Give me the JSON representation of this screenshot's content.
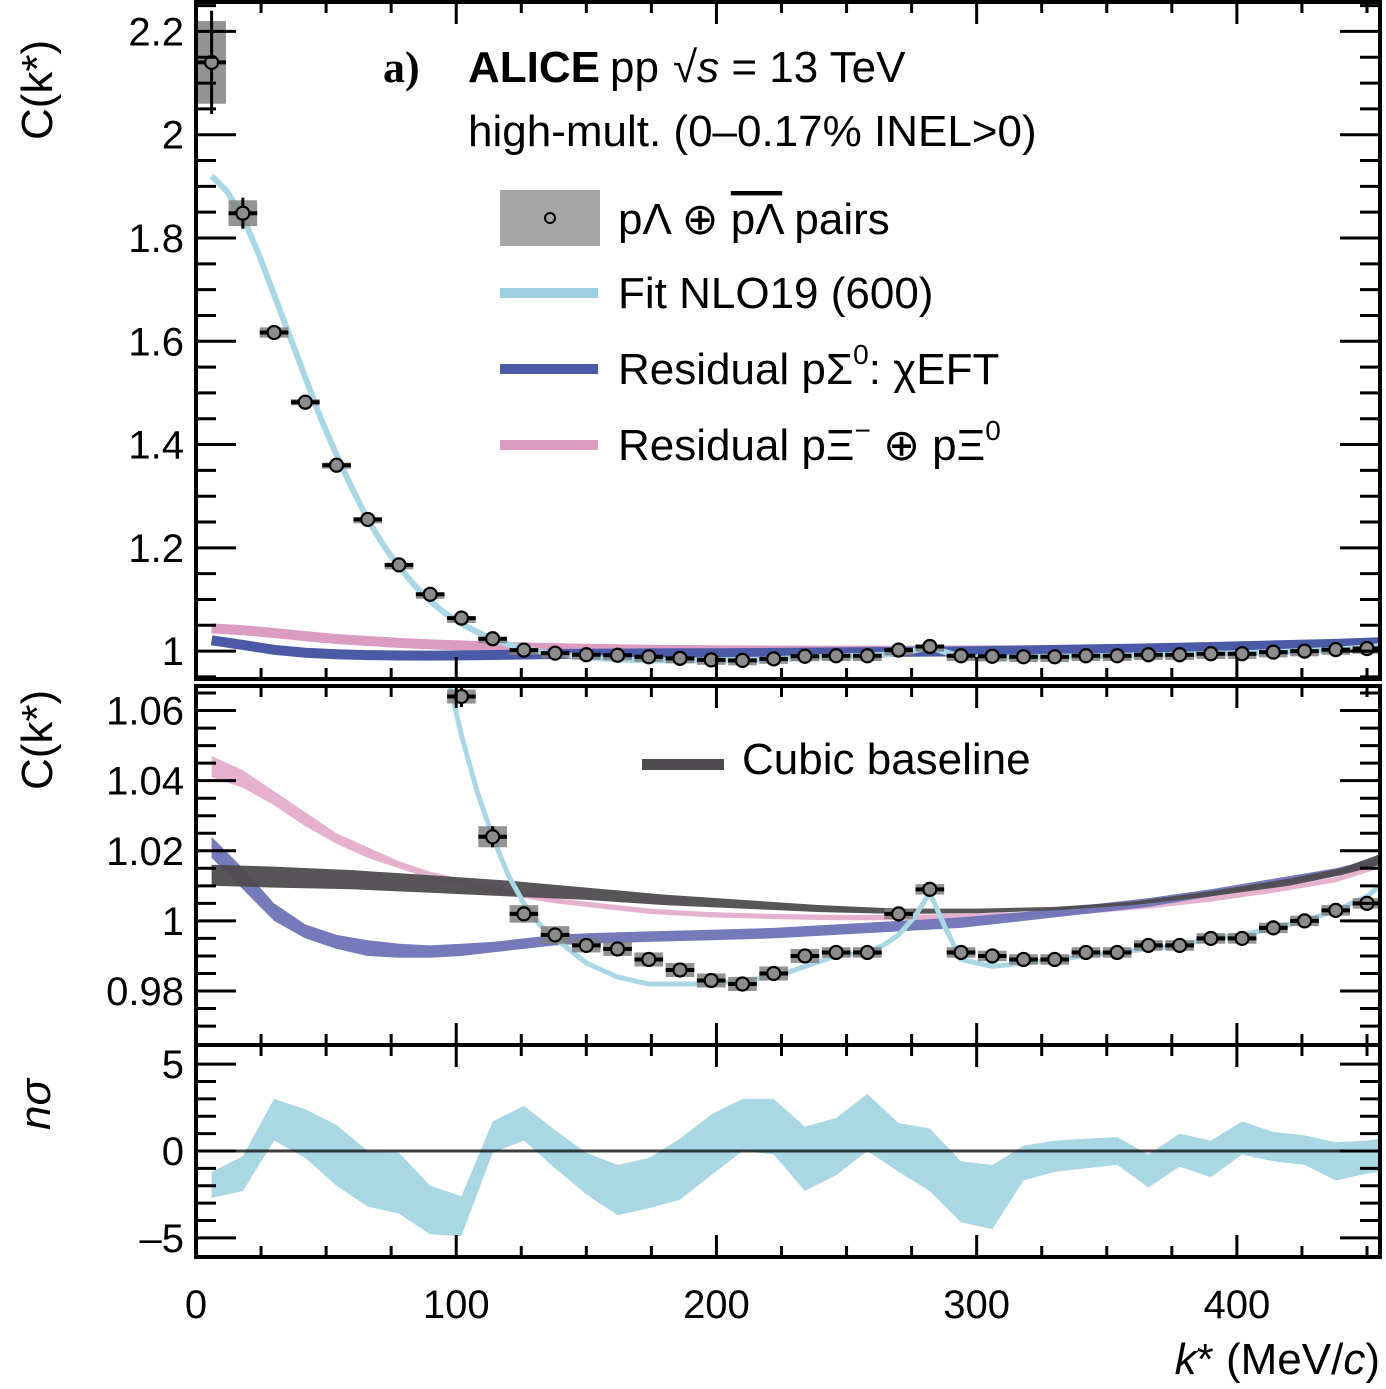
{
  "chart_data": {
    "type": "scatter",
    "panel_label": "a)",
    "header": {
      "experiment": "ALICE",
      "system": "pp",
      "energy": "√s = 13 TeV",
      "sqrt_symbol": "√",
      "s_symbol": "s",
      "energy_rest": " = 13 TeV",
      "multiplicity": "high-mult. (0–0.17% INEL>0)"
    },
    "colors": {
      "data_box": "#808080",
      "data_marker": "#8c8c8c",
      "fit": "#a9d7e4",
      "sigma0": "#4b5aa6",
      "sigma0_band": "#6e73b7",
      "xi": "#dc9cc2",
      "xi_band": "#e2a9ca",
      "baseline": "#4e4c4e",
      "nsigma_band": "#a9d7e4"
    },
    "xlabel": "k* (MeV/c)",
    "xlabel_parts": {
      "k": "k",
      "star": "* (MeV/",
      "c": "c",
      "close": ")"
    },
    "xlim": [
      0,
      455
    ],
    "xticks": [
      0,
      100,
      200,
      300,
      400
    ],
    "xtick_labels": [
      "0",
      "100",
      "200",
      "300",
      "400"
    ],
    "panels": [
      {
        "name": "top",
        "ylabel": "C(k*)",
        "ylim": [
          0.946,
          2.257
        ],
        "yticks": [
          1,
          1.2,
          1.4,
          1.6,
          1.8,
          2,
          2.2
        ],
        "ytick_labels": [
          "1",
          "1.2",
          "1.4",
          "1.6",
          "1.8",
          "2",
          "2.2"
        ]
      },
      {
        "name": "middle",
        "ylabel": "C(k*)",
        "ylim": [
          0.9646,
          1.067
        ],
        "yticks": [
          0.98,
          1,
          1.02,
          1.04,
          1.06
        ],
        "ytick_labels": [
          "0.98",
          "1",
          "1.02",
          "1.04",
          "1.06"
        ]
      },
      {
        "name": "bottom",
        "ylabel": "nσ",
        "ylim": [
          -6.1,
          6.1
        ],
        "yticks": [
          -5,
          0,
          5
        ],
        "ytick_labels": [
          "–5",
          "0",
          "5"
        ]
      }
    ],
    "legend": [
      {
        "label": "pΛ ⊕ p̄Λ̄ pairs",
        "text1": "pΛ ⊕ ",
        "text_bar": "pΛ",
        "text2": " pairs",
        "kind": "data"
      },
      {
        "label": "Fit NLO19 (600)",
        "kind": "fit"
      },
      {
        "label": "Residual pΣ0: χEFT",
        "t1": "Residual pΣ",
        "sup": "0",
        "t2": ": χEFT",
        "kind": "sigma0"
      },
      {
        "label": "Residual pΞ− ⊕ pΞ0",
        "t1": "Residual pΞ",
        "sup1": "−",
        "t2": " ⊕ pΞ",
        "sup2": "0",
        "kind": "xi"
      },
      {
        "label": "Cubic baseline",
        "kind": "baseline"
      }
    ],
    "data": {
      "name": "pΛ ⊕ p̄Λ̄ pairs",
      "x": [
        6,
        18,
        30,
        42,
        54,
        66,
        78,
        90,
        102,
        114,
        126,
        138,
        150,
        162,
        174,
        186,
        198,
        210,
        222,
        234,
        246,
        258,
        270,
        282,
        294,
        306,
        318,
        330,
        342,
        354,
        366,
        378,
        390,
        402,
        414,
        426,
        438,
        450
      ],
      "y": [
        2.14,
        1.848,
        1.617,
        1.482,
        1.36,
        1.255,
        1.167,
        1.11,
        1.064,
        1.024,
        1.002,
        0.996,
        0.993,
        0.992,
        0.989,
        0.986,
        0.983,
        0.982,
        0.985,
        0.99,
        0.991,
        0.991,
        1.002,
        1.009,
        0.991,
        0.99,
        0.989,
        0.989,
        0.991,
        0.991,
        0.993,
        0.993,
        0.995,
        0.995,
        0.998,
        1.0,
        1.003,
        1.005
      ],
      "stat_err": [
        0.1,
        0.03,
        0.012,
        0.008,
        0.006,
        0.005,
        0.004,
        0.003,
        0.003,
        0.003,
        0.002,
        0.002,
        0.002,
        0.002,
        0.002,
        0.002,
        0.002,
        0.002,
        0.002,
        0.002,
        0.002,
        0.002,
        0.002,
        0.002,
        0.002,
        0.002,
        0.002,
        0.002,
        0.002,
        0.002,
        0.002,
        0.002,
        0.002,
        0.002,
        0.002,
        0.002,
        0.002,
        0.002
      ],
      "sys_err": [
        0.08,
        0.025,
        0.01,
        0.006,
        0.005,
        0.004,
        0.003,
        0.003,
        0.002,
        0.003,
        0.0025,
        0.0025,
        0.002,
        0.002,
        0.002,
        0.002,
        0.002,
        0.002,
        0.002,
        0.002,
        0.0015,
        0.0015,
        0.0015,
        0.0015,
        0.0015,
        0.0015,
        0.0015,
        0.0015,
        0.0015,
        0.0015,
        0.0015,
        0.0015,
        0.0015,
        0.0015,
        0.0015,
        0.0015,
        0.0015,
        0.0015
      ]
    },
    "fit": {
      "name": "Fit NLO19 (600)",
      "x": [
        6,
        12,
        18,
        24,
        30,
        36,
        42,
        48,
        54,
        60,
        66,
        72,
        78,
        84,
        90,
        96,
        102,
        108,
        114,
        120,
        126,
        132,
        138,
        150,
        162,
        174,
        186,
        198,
        210,
        222,
        234,
        246,
        258,
        264,
        270,
        276,
        282,
        288,
        294,
        306,
        318,
        330,
        342,
        354,
        366,
        378,
        390,
        402,
        414,
        426,
        438,
        450,
        455
      ],
      "y": [
        1.92,
        1.89,
        1.84,
        1.77,
        1.69,
        1.61,
        1.53,
        1.45,
        1.38,
        1.315,
        1.255,
        1.205,
        1.163,
        1.127,
        1.097,
        1.072,
        1.053,
        1.037,
        1.024,
        1.013,
        1.005,
        0.999,
        0.995,
        0.988,
        0.984,
        0.982,
        0.982,
        0.982,
        0.983,
        0.984,
        0.987,
        0.99,
        0.991,
        0.993,
        0.996,
        1.001,
        1.008,
        0.998,
        0.989,
        0.987,
        0.988,
        0.989,
        0.99,
        0.991,
        0.992,
        0.993,
        0.995,
        0.996,
        0.998,
        1.0,
        1.003,
        1.007,
        1.01
      ]
    },
    "sigma0": {
      "name": "Residual pΣ0: χEFT",
      "x": [
        6,
        18,
        30,
        42,
        54,
        66,
        78,
        90,
        102,
        114,
        126,
        138,
        150,
        174,
        198,
        222,
        246,
        270,
        294,
        318,
        342,
        366,
        390,
        414,
        438,
        455
      ],
      "y_low": [
        1.018,
        1.009,
        1.0,
        0.995,
        0.992,
        0.99,
        0.9895,
        0.9895,
        0.99,
        0.991,
        0.992,
        0.993,
        0.9935,
        0.994,
        0.9945,
        0.995,
        0.996,
        0.997,
        0.998,
        1.0,
        1.002,
        1.004,
        1.007,
        1.01,
        1.013,
        1.016
      ],
      "y_high": [
        1.024,
        1.015,
        1.005,
        0.999,
        0.996,
        0.9945,
        0.9935,
        0.993,
        0.9935,
        0.994,
        0.995,
        0.996,
        0.9965,
        0.997,
        0.9975,
        0.998,
        0.999,
        1.0,
        1.001,
        1.0025,
        1.0045,
        1.0065,
        1.009,
        1.012,
        1.015,
        1.018
      ]
    },
    "xi": {
      "name": "Residual pΞ− ⊕ pΞ0",
      "x": [
        6,
        18,
        30,
        42,
        54,
        66,
        78,
        90,
        102,
        114,
        126,
        138,
        150,
        174,
        198,
        222,
        246,
        270,
        294,
        318,
        342,
        366,
        390,
        414,
        438,
        455
      ],
      "y_low": [
        1.041,
        1.038,
        1.033,
        1.027,
        1.022,
        1.018,
        1.015,
        1.012,
        1.01,
        1.008,
        1.0065,
        1.005,
        1.004,
        1.002,
        1.001,
        1.0005,
        1.0002,
        1.0002,
        1.0005,
        1.001,
        1.002,
        1.0035,
        1.0055,
        1.008,
        1.011,
        1.015
      ],
      "y_high": [
        1.047,
        1.043,
        1.037,
        1.031,
        1.025,
        1.021,
        1.017,
        1.014,
        1.012,
        1.01,
        1.008,
        1.0065,
        1.0055,
        1.0035,
        1.0025,
        1.002,
        1.0017,
        1.0017,
        1.002,
        1.0025,
        1.0035,
        1.005,
        1.007,
        1.0095,
        1.0125,
        1.017
      ]
    },
    "baseline": {
      "name": "Cubic baseline",
      "x": [
        6,
        30,
        60,
        90,
        120,
        150,
        180,
        210,
        240,
        270,
        300,
        330,
        360,
        390,
        420,
        440,
        455
      ],
      "y_low": [
        1.01,
        1.0095,
        1.009,
        1.008,
        1.007,
        1.006,
        1.0045,
        1.0035,
        1.0025,
        1.002,
        1.0022,
        1.003,
        1.0045,
        1.007,
        1.01,
        1.013,
        1.016
      ],
      "y_high": [
        1.016,
        1.0155,
        1.0145,
        1.013,
        1.0115,
        1.0095,
        1.0075,
        1.006,
        1.0045,
        1.0035,
        1.0035,
        1.004,
        1.0055,
        1.0085,
        1.012,
        1.015,
        1.019
      ]
    },
    "nsigma": {
      "name": "nσ",
      "x": [
        6,
        18,
        30,
        42,
        54,
        66,
        78,
        90,
        102,
        114,
        126,
        138,
        150,
        162,
        174,
        186,
        198,
        210,
        222,
        234,
        246,
        258,
        270,
        282,
        294,
        306,
        318,
        330,
        342,
        354,
        366,
        378,
        390,
        402,
        414,
        426,
        438,
        450,
        455
      ],
      "y_low": [
        -2.7,
        -2.3,
        0.6,
        -0.4,
        -2.0,
        -3.2,
        -3.6,
        -4.8,
        -4.9,
        -0.1,
        0.6,
        -1.0,
        -2.5,
        -3.7,
        -3.3,
        -2.8,
        -1.4,
        0.0,
        -0.2,
        -2.3,
        -1.4,
        0.0,
        -1.2,
        -2.3,
        -4.1,
        -4.5,
        -1.7,
        -1.2,
        -1.0,
        -0.8,
        -2.1,
        -0.9,
        -1.5,
        -0.2,
        -0.6,
        -0.8,
        -1.7,
        -1.3,
        -1.2
      ],
      "y_high": [
        -1.2,
        -0.3,
        3.0,
        2.4,
        1.5,
        0.0,
        -0.1,
        -2.0,
        -2.6,
        1.7,
        2.6,
        1.2,
        -0.1,
        -0.8,
        -0.4,
        0.7,
        2.1,
        3.0,
        3.0,
        1.4,
        1.9,
        3.3,
        1.6,
        1.3,
        -0.6,
        -0.8,
        0.3,
        0.6,
        0.7,
        0.8,
        -0.2,
        1.0,
        0.6,
        1.7,
        1.1,
        0.9,
        0.5,
        0.6,
        0.7
      ]
    }
  }
}
